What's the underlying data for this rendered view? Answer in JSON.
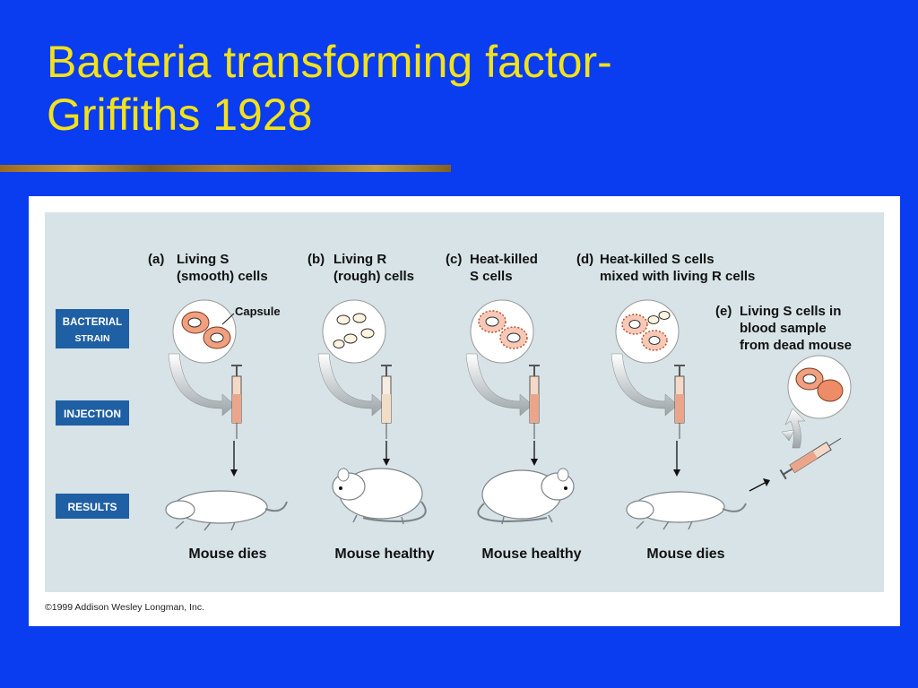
{
  "slide": {
    "title_line1": "Bacteria transforming factor-",
    "title_line2": "Griffiths 1928"
  },
  "diagram": {
    "row_labels": {
      "strain_line1": "BACTERIAL",
      "strain_line2": "STRAIN",
      "injection": "INJECTION",
      "results": "RESULTS"
    },
    "stages": [
      {
        "letter": "(a)",
        "line1": "Living S",
        "line2": "(smooth) cells",
        "result": "Mouse dies"
      },
      {
        "letter": "(b)",
        "line1": "Living R",
        "line2": "(rough) cells",
        "result": "Mouse healthy"
      },
      {
        "letter": "(c)",
        "line1": "Heat-killed",
        "line2": "S cells",
        "result": "Mouse healthy"
      },
      {
        "letter": "(d)",
        "line1": "Heat-killed S cells",
        "line2": "mixed with living R cells",
        "result": "Mouse dies"
      }
    ],
    "stage_e": {
      "letter": "(e)",
      "line1": "Living S cells in",
      "line2": "blood sample",
      "line3": "from dead mouse"
    },
    "capsule_label": "Capsule",
    "copyright": "©1999 Addison Wesley Longman, Inc."
  },
  "colors": {
    "background": "#0a3cf0",
    "title": "#f2e21a",
    "label_box": "#1f5fa3",
    "capsule": "#f1a07f",
    "panel": "#d7e3e7"
  }
}
